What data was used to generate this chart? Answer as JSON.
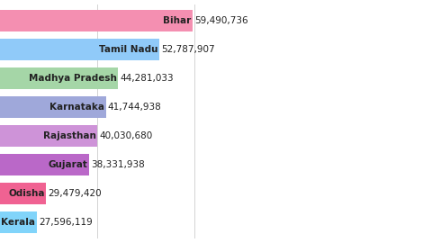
{
  "states": [
    "Bihar",
    "Tamil Nadu",
    "Madhya Pradesh",
    "Karnataka",
    "Rajasthan",
    "Gujarat",
    "Odisha",
    "Kerala"
  ],
  "values": [
    59490736,
    52787907,
    44281033,
    41744938,
    40030680,
    38331938,
    29479420,
    27596119
  ],
  "labels": [
    "59,490,736",
    "52,787,907",
    "44,281,033",
    "41,744,938",
    "40,030,680",
    "38,331,938",
    "29,479,420",
    "27,596,119"
  ],
  "bar_colors": [
    "#F48FB1",
    "#90CAF9",
    "#A5D6A7",
    "#9FA8DA",
    "#CE93D8",
    "#BA68C8",
    "#F06292",
    "#81D4FA"
  ],
  "background_color": "#FFFFFF",
  "text_color": "#222222",
  "bar_height": 0.72,
  "xlim_min": 20000000,
  "xlim_max": 75000000,
  "label_fontsize": 7.5,
  "value_fontsize": 7.5,
  "grid_lines": [
    40000000,
    60000000
  ],
  "figsize": [
    4.8,
    2.7
  ],
  "dpi": 100
}
